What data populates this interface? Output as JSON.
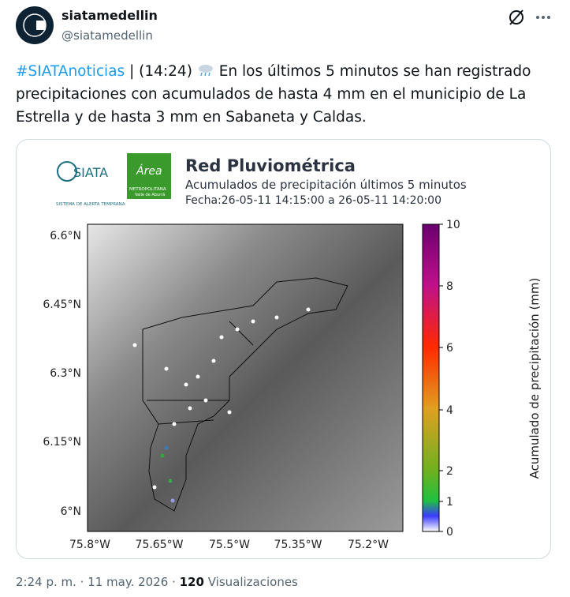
{
  "post": {
    "author": {
      "name": "siatamedellin",
      "handle": "@siatamedellin"
    },
    "text": {
      "hashtag": "#SIATAnoticias",
      "time": "| (14:24)",
      "body": "En los últimos 5 minutos se han registrado precipitaciones con acumulados de hasta 4 mm en el municipio de La Estrella y de hasta 3 mm en Sabaneta y Caldas."
    },
    "image": {
      "logo": {
        "siata": "SIATA",
        "siata_tagline": "SISTEMA DE ALERTA TEMPRANA",
        "area": "Área",
        "area_line1": "METROPOLITANA",
        "area_line2": "Valle de Aburrá"
      },
      "title": "Red Pluviométrica",
      "subtitle": "Acumulados de precipitación últimos 5 minutos",
      "date_range": "Fecha:26-05-11 14:15:00 a 26-05-11 14:20:00",
      "lat_labels": [
        "6.6°N",
        "6.45°N",
        "6.3°N",
        "6.15°N",
        "6°N"
      ],
      "lon_labels": [
        "75.8°W",
        "75.65°W",
        "75.5°W",
        "75.35°W",
        "75.2°W"
      ],
      "colorbar": {
        "label": "Acumulado de precipitación (mm)",
        "ticks": [
          0,
          1,
          2,
          4,
          6,
          8,
          10
        ]
      }
    },
    "footer": {
      "timestamp": "2:24 p. m. · 11 may. 2026 ·",
      "views": 120,
      "views_label": "Visualizaciones"
    }
  }
}
